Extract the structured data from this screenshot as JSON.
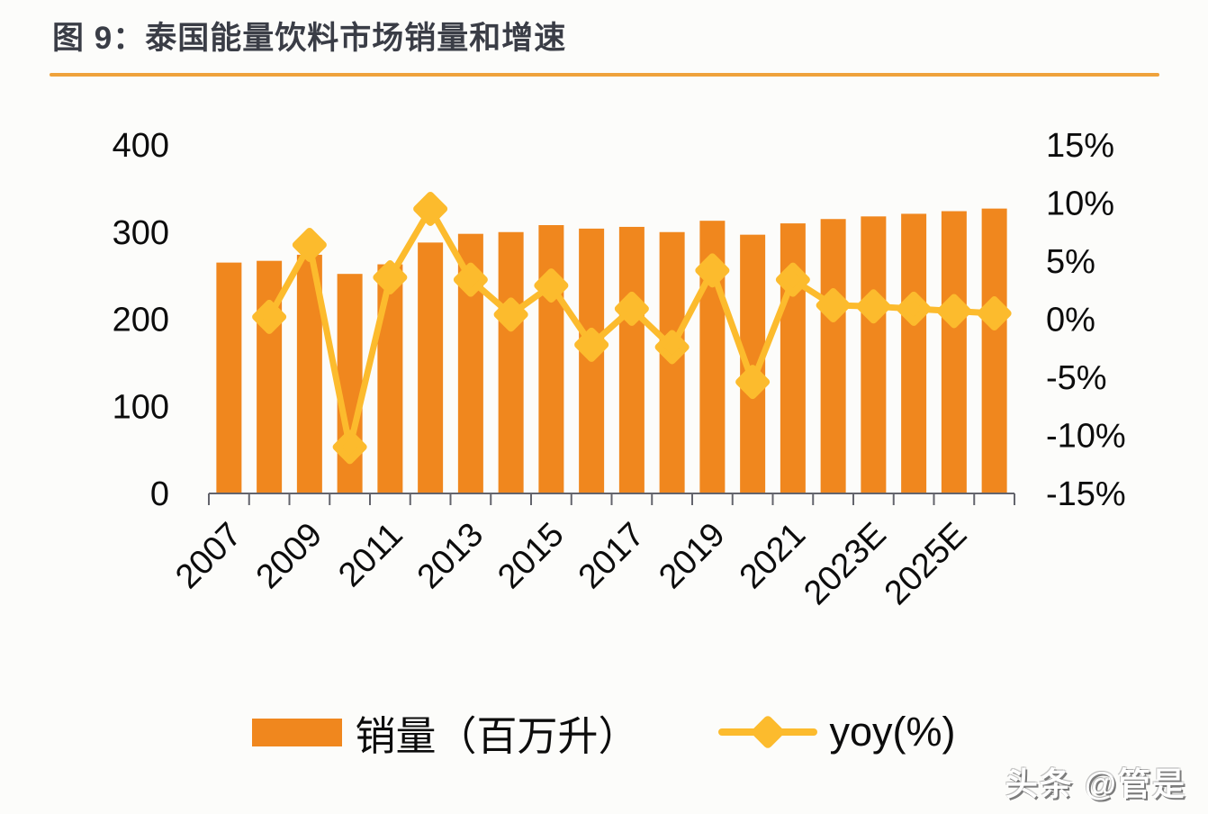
{
  "header": {
    "title": "图 9：泰国能量饮料市场销量和增速",
    "rule_color": "#EFA23B"
  },
  "watermark": "头条 @管是",
  "colors": {
    "bar": "#F0871E",
    "line": "#FCBB2D",
    "axis": "#63646c",
    "tick_text": "#0c0c0c",
    "title_text": "#3a3d46"
  },
  "chart_data": {
    "type": "bar+line combo",
    "title": "泰国能量饮料市场销量和增速",
    "categories": [
      "2007",
      "2008",
      "2009",
      "2010",
      "2011",
      "2012",
      "2013",
      "2014",
      "2015",
      "2016",
      "2017",
      "2018",
      "2019",
      "2020",
      "2021",
      "2022",
      "2023E",
      "2024E",
      "2025E",
      "2026E"
    ],
    "x_tick_labels": [
      "2007",
      "2009",
      "2011",
      "2013",
      "2015",
      "2017",
      "2019",
      "2021",
      "2023E",
      "2025E"
    ],
    "x_tick_every": 2,
    "series": [
      {
        "name": "销量（百万升）",
        "type": "bar",
        "axis": "left",
        "color": "#F0871E",
        "values": [
          265,
          267,
          274,
          252,
          263,
          288,
          298,
          300,
          308,
          304,
          306,
          300,
          313,
          297,
          310,
          315,
          318,
          321,
          324,
          327
        ]
      },
      {
        "name": "yoy(%)",
        "type": "line",
        "axis": "right",
        "color": "#FCBB2D",
        "values": [
          null,
          0.2,
          6.4,
          -11,
          3.6,
          9.5,
          3.4,
          0.4,
          2.9,
          -2.2,
          0.9,
          -2.4,
          4.2,
          -5.4,
          3.4,
          1.2,
          1.1,
          0.9,
          0.7,
          0.5
        ]
      }
    ],
    "left_axis": {
      "label": "销量（百万升）",
      "ticks": [
        0,
        100,
        200,
        300,
        400
      ],
      "range": [
        0,
        400
      ]
    },
    "right_axis": {
      "label": "yoy(%)",
      "ticks": [
        "-15%",
        "-10%",
        "-5%",
        "0%",
        "5%",
        "10%",
        "15%"
      ],
      "tick_values": [
        -15,
        -10,
        -5,
        0,
        5,
        10,
        15
      ],
      "range": [
        -15,
        15
      ]
    },
    "grid": "off",
    "legend_position": "bottom"
  }
}
